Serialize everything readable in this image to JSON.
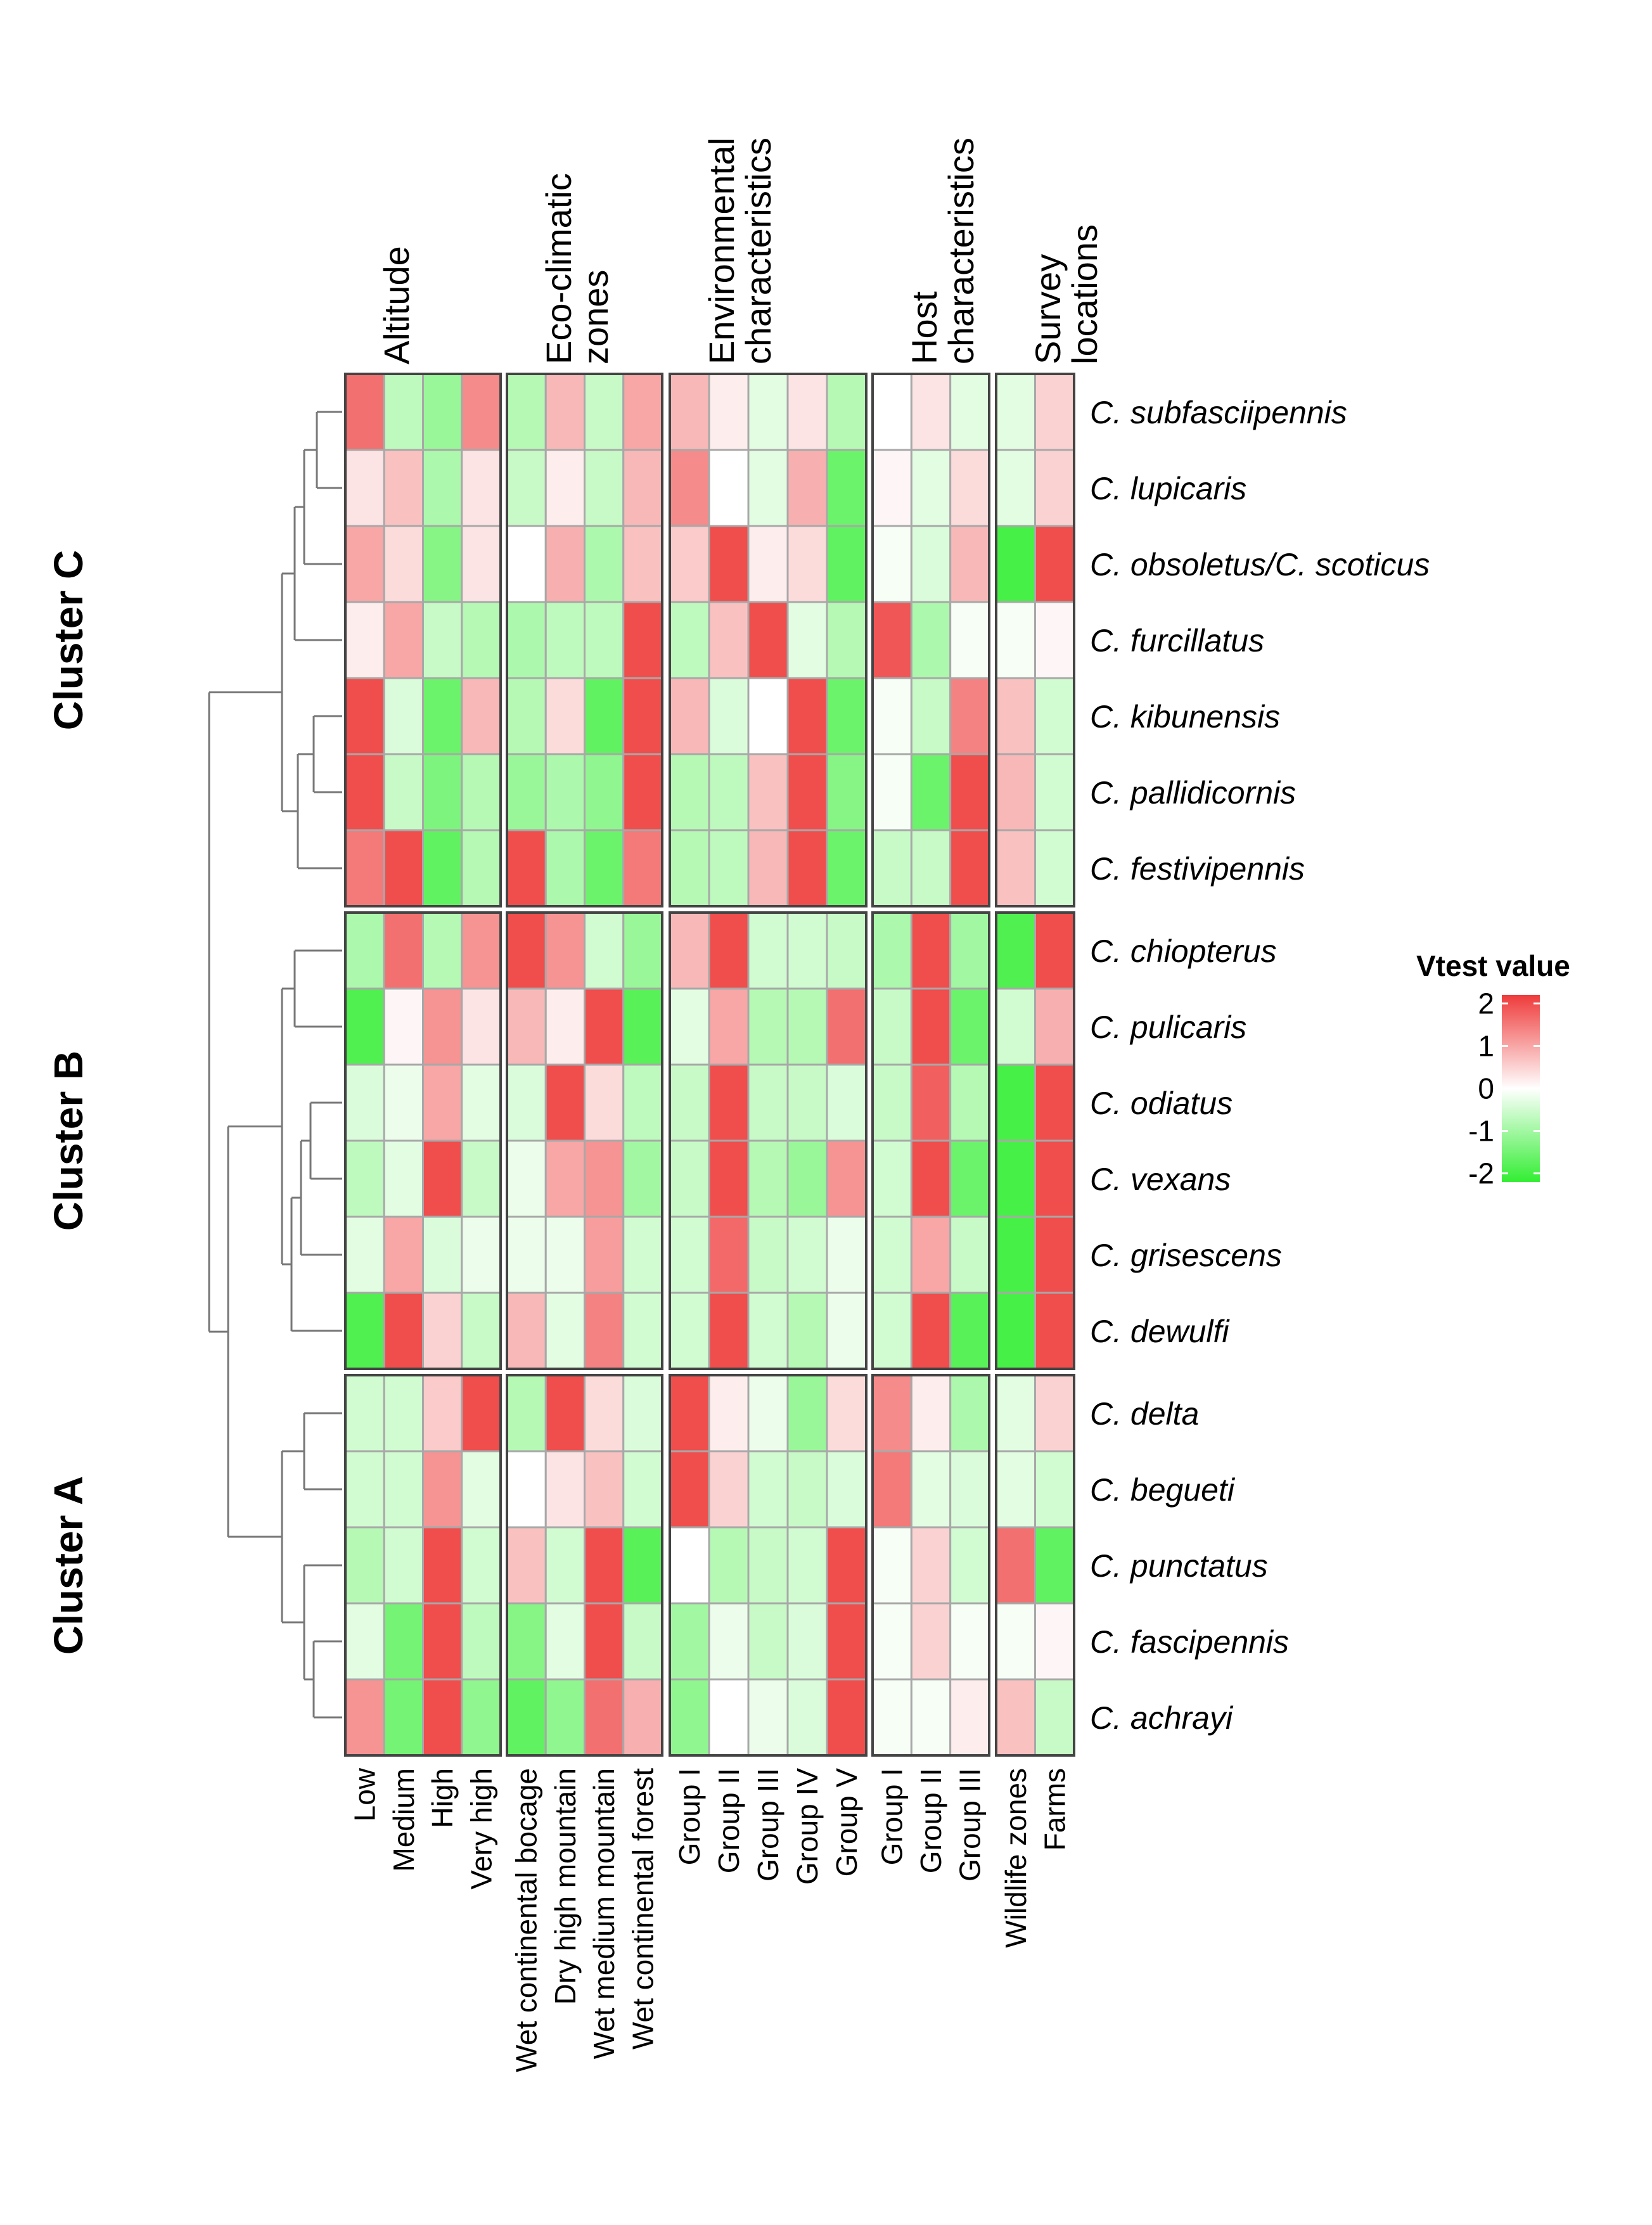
{
  "chart_data": {
    "type": "heatmap",
    "legend": {
      "title": "Vtest value",
      "ticks": [
        2,
        1,
        0,
        -1,
        -2
      ],
      "range": [
        -2.2,
        2.2
      ]
    },
    "column_groups": [
      {
        "name": "Altitude",
        "title_lines": [
          "Altitude"
        ],
        "columns": [
          "Low",
          "Medium",
          "High",
          "Very high"
        ]
      },
      {
        "name": "Eco-climatic zones",
        "title_lines": [
          "Eco-climatic",
          "zones"
        ],
        "columns": [
          "Wet continental bocage",
          "Dry high mountain",
          "Wet medium mountain",
          "Wet continental forest"
        ]
      },
      {
        "name": "Environmental characteristics",
        "title_lines": [
          "Environmental",
          "characteristics"
        ],
        "columns": [
          "Group I",
          "Group II",
          "Group III",
          "Group IV",
          "Group V"
        ]
      },
      {
        "name": "Host characteristics",
        "title_lines": [
          "Host",
          "characteristics"
        ],
        "columns": [
          "Group I",
          "Group II",
          "Group III"
        ]
      },
      {
        "name": "Survey locations",
        "title_lines": [
          "Survey",
          "locations"
        ],
        "columns": [
          "Wildlife zones",
          "Farms"
        ]
      }
    ],
    "clusters": [
      {
        "label": "Cluster C",
        "rows": [
          {
            "species": "C. subfasciipennis",
            "values": [
              1.6,
              -0.7,
              -1.1,
              1.3,
              -0.8,
              0.8,
              -0.6,
              1.0,
              0.8,
              0.2,
              -0.3,
              0.3,
              -0.8,
              0.0,
              0.3,
              -0.3,
              -0.3,
              0.5
            ]
          },
          {
            "species": "C. lupicaris",
            "values": [
              0.3,
              0.7,
              -0.9,
              0.3,
              -0.6,
              0.2,
              -0.6,
              0.8,
              1.3,
              0.0,
              -0.3,
              0.9,
              -1.6,
              0.1,
              -0.3,
              0.4,
              -0.3,
              0.5
            ]
          },
          {
            "species": "C. obsoletus/C. scoticus",
            "values": [
              1.0,
              0.4,
              -1.3,
              0.3,
              0.0,
              0.9,
              -0.9,
              0.7,
              0.6,
              2.0,
              0.2,
              0.4,
              -1.7,
              -0.1,
              -0.4,
              0.8,
              -2.0,
              2.0
            ]
          },
          {
            "species": "C. furcillatus",
            "values": [
              0.2,
              1.0,
              -0.6,
              -0.8,
              -0.9,
              -0.7,
              -0.7,
              2.0,
              -0.7,
              0.7,
              2.0,
              -0.3,
              -0.8,
              1.9,
              -0.9,
              -0.1,
              -0.1,
              0.1
            ]
          },
          {
            "species": "C. kibunensis",
            "values": [
              2.0,
              -0.4,
              -1.6,
              0.8,
              -0.8,
              0.4,
              -1.7,
              2.0,
              0.8,
              -0.4,
              0.0,
              2.0,
              -1.6,
              -0.1,
              -0.6,
              1.4,
              0.7,
              -0.5
            ]
          },
          {
            "species": "C. pallidicornis",
            "values": [
              2.0,
              -0.6,
              -1.4,
              -0.8,
              -1.1,
              -0.9,
              -1.2,
              2.0,
              -0.8,
              -0.7,
              0.7,
              2.0,
              -1.3,
              -0.1,
              -1.6,
              2.0,
              0.8,
              -0.5
            ]
          },
          {
            "species": "C. festivipennis",
            "values": [
              1.5,
              2.0,
              -1.7,
              -0.8,
              2.0,
              -0.9,
              -1.6,
              1.5,
              -0.8,
              -0.7,
              0.8,
              2.0,
              -1.6,
              -0.6,
              -0.6,
              2.0,
              0.7,
              -0.5
            ]
          }
        ]
      },
      {
        "label": "Cluster B",
        "rows": [
          {
            "species": "C. chiopterus",
            "values": [
              -0.9,
              1.6,
              -0.8,
              1.2,
              2.0,
              1.2,
              -0.5,
              -1.1,
              0.8,
              2.0,
              -0.5,
              -0.5,
              -0.6,
              -0.9,
              2.0,
              -1.0,
              -1.9,
              2.0
            ]
          },
          {
            "species": "C. pulicaris",
            "values": [
              -1.9,
              0.1,
              1.2,
              0.3,
              0.8,
              0.2,
              2.0,
              -1.8,
              -0.3,
              1.0,
              -0.8,
              -0.8,
              1.6,
              -0.6,
              2.0,
              -1.6,
              -0.5,
              0.9
            ]
          },
          {
            "species": "C. odiatus",
            "values": [
              -0.4,
              -0.2,
              1.0,
              -0.3,
              -0.4,
              2.0,
              0.4,
              -0.7,
              -0.6,
              2.0,
              -0.6,
              -0.6,
              -0.4,
              -0.6,
              1.8,
              -0.8,
              -2.0,
              2.0
            ]
          },
          {
            "species": "C. vexans",
            "values": [
              -0.7,
              -0.3,
              2.0,
              -0.6,
              -0.2,
              1.0,
              1.2,
              -1.0,
              -0.6,
              2.0,
              -0.8,
              -1.1,
              1.2,
              -0.5,
              2.0,
              -1.6,
              -2.0,
              2.0
            ]
          },
          {
            "species": "C. grisescens",
            "values": [
              -0.3,
              1.0,
              -0.4,
              -0.2,
              -0.2,
              -0.2,
              1.1,
              -0.5,
              -0.5,
              1.7,
              -0.6,
              -0.5,
              -0.2,
              -0.5,
              1.0,
              -0.6,
              -2.0,
              2.0
            ]
          },
          {
            "species": "C. dewulfi",
            "values": [
              -1.9,
              2.0,
              0.5,
              -0.6,
              0.8,
              -0.3,
              1.4,
              -0.5,
              -0.5,
              2.0,
              -0.5,
              -0.8,
              -0.2,
              -0.5,
              2.0,
              -1.8,
              -2.0,
              2.0
            ]
          }
        ]
      },
      {
        "label": "Cluster A",
        "rows": [
          {
            "species": "C. delta",
            "values": [
              -0.5,
              -0.5,
              0.6,
              2.0,
              -0.8,
              2.0,
              0.4,
              -0.4,
              2.0,
              0.2,
              -0.2,
              -1.1,
              0.4,
              1.3,
              0.2,
              -0.9,
              -0.3,
              0.5
            ]
          },
          {
            "species": "C. begueti",
            "values": [
              -0.5,
              -0.5,
              1.2,
              -0.3,
              0.0,
              0.3,
              0.7,
              -0.5,
              2.0,
              0.5,
              -0.5,
              -0.6,
              -0.4,
              1.5,
              -0.3,
              -0.4,
              -0.3,
              -0.5
            ]
          },
          {
            "species": "C. punctatus",
            "values": [
              -0.8,
              -0.5,
              2.0,
              -0.5,
              0.7,
              -0.5,
              2.0,
              -1.8,
              0.0,
              -0.8,
              -0.6,
              -0.5,
              2.0,
              -0.1,
              0.5,
              -0.5,
              1.6,
              -1.7
            ]
          },
          {
            "species": "C. fascipennis",
            "values": [
              -0.3,
              -1.5,
              2.0,
              -0.7,
              -1.3,
              -0.3,
              2.0,
              -0.6,
              -1.0,
              -0.2,
              -0.6,
              -0.4,
              2.0,
              -0.1,
              0.5,
              -0.1,
              -0.1,
              0.1
            ]
          },
          {
            "species": "C. achrayi",
            "values": [
              1.2,
              -1.5,
              2.0,
              -1.2,
              -1.7,
              -1.2,
              1.6,
              0.9,
              -1.2,
              0.0,
              -0.2,
              -0.4,
              2.0,
              -0.1,
              -0.1,
              0.2,
              0.7,
              -0.6
            ]
          }
        ]
      }
    ]
  },
  "colors": {
    "high": "#ef3b3b",
    "mid": "#ffffff",
    "low": "#33ee33",
    "grid": "#a8a8a8",
    "border": "#444444"
  }
}
